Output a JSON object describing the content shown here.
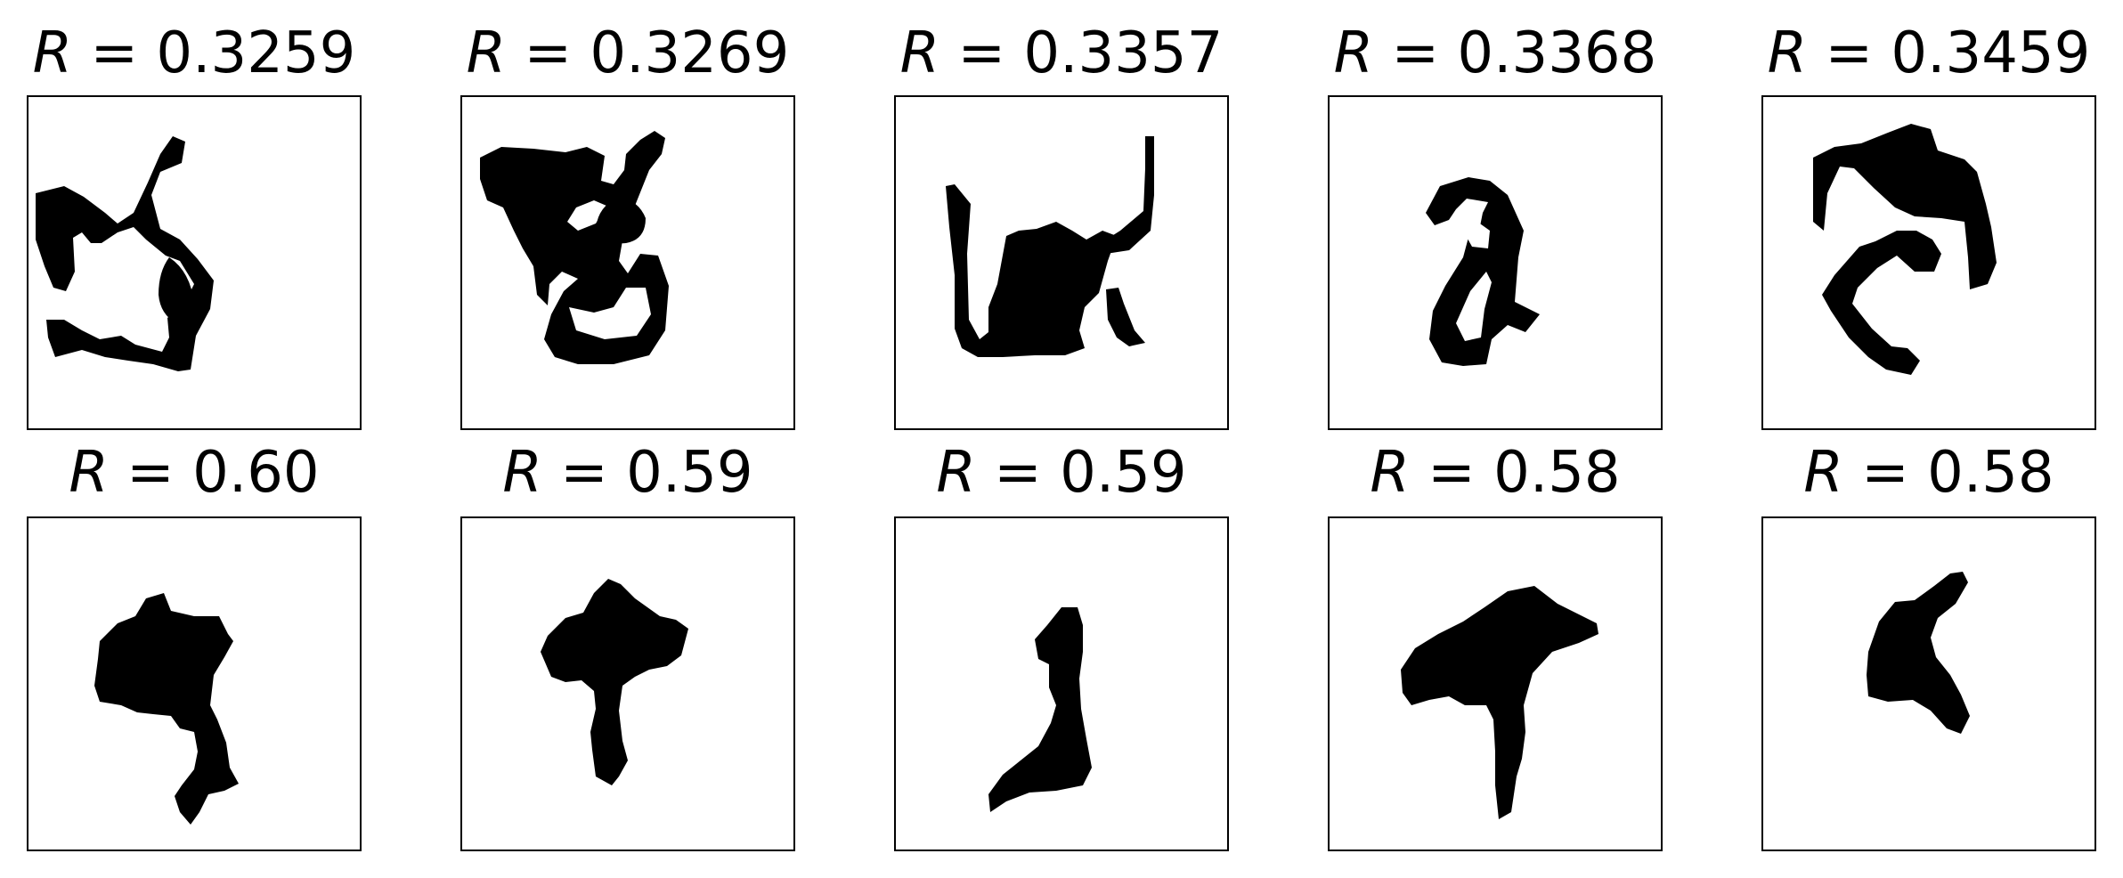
{
  "panels": [
    {
      "label": "R",
      "eq": " = ",
      "value": "0.3259",
      "shape": "blob-loop-icon"
    },
    {
      "label": "R",
      "eq": " = ",
      "value": "0.3269",
      "shape": "blob-curl-icon"
    },
    {
      "label": "R",
      "eq": " = ",
      "value": "0.3357",
      "shape": "blob-cup-icon"
    },
    {
      "label": "R",
      "eq": " = ",
      "value": "0.3368",
      "shape": "blob-hook-icon"
    },
    {
      "label": "R",
      "eq": " = ",
      "value": "0.3459",
      "shape": "blob-swirl-icon"
    },
    {
      "label": "R",
      "eq": " = ",
      "value": "0.60",
      "shape": "blob-cap-icon"
    },
    {
      "label": "R",
      "eq": " = ",
      "value": "0.59",
      "shape": "blob-mushroom-icon"
    },
    {
      "label": "R",
      "eq": " = ",
      "value": "0.59",
      "shape": "blob-figure-icon"
    },
    {
      "label": "R",
      "eq": " = ",
      "value": "0.58",
      "shape": "blob-tree-icon"
    },
    {
      "label": "R",
      "eq": " = ",
      "value": "0.58",
      "shape": "blob-fork-icon"
    }
  ],
  "colors": {
    "shape": "#000000",
    "background": "#ffffff",
    "frame": "#000000"
  }
}
